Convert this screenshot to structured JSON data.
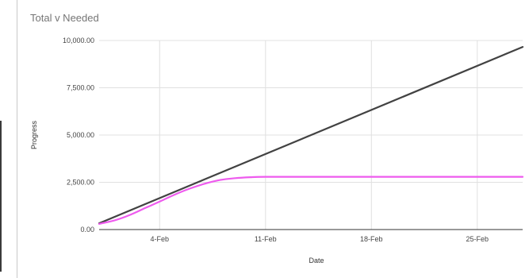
{
  "chart_data": {
    "type": "line",
    "title": "Total v Needed",
    "xlabel": "Date",
    "ylabel": "Progress",
    "xlim": [
      "2024-01-31",
      "2024-02-28"
    ],
    "ylim": [
      0,
      10000
    ],
    "yticks": [
      0,
      2500,
      5000,
      7500,
      10000
    ],
    "ytick_labels": [
      "0.00",
      "2,500.00",
      "5,000.00",
      "7,500.00",
      "10,000.00"
    ],
    "xticks": [
      "2024-02-04",
      "2024-02-11",
      "2024-02-18",
      "2024-02-25"
    ],
    "xtick_labels": [
      "4-Feb",
      "11-Feb",
      "18-Feb",
      "25-Feb"
    ],
    "grid": true,
    "series": [
      {
        "color": "#424242",
        "x": [
          "2024-01-31",
          "2024-02-28"
        ],
        "values": [
          330,
          9660
        ]
      },
      {
        "color": "#ee5bee",
        "x": [
          "2024-01-31",
          "2024-02-01",
          "2024-02-02",
          "2024-02-03",
          "2024-02-04",
          "2024-02-05",
          "2024-02-06",
          "2024-02-07",
          "2024-02-08",
          "2024-02-09",
          "2024-02-10",
          "2024-02-11",
          "2024-02-14",
          "2024-02-18",
          "2024-02-21",
          "2024-02-25",
          "2024-02-28"
        ],
        "values": [
          300,
          480,
          760,
          1120,
          1480,
          1850,
          2170,
          2430,
          2620,
          2720,
          2770,
          2790,
          2790,
          2790,
          2790,
          2790,
          2790
        ]
      }
    ]
  }
}
